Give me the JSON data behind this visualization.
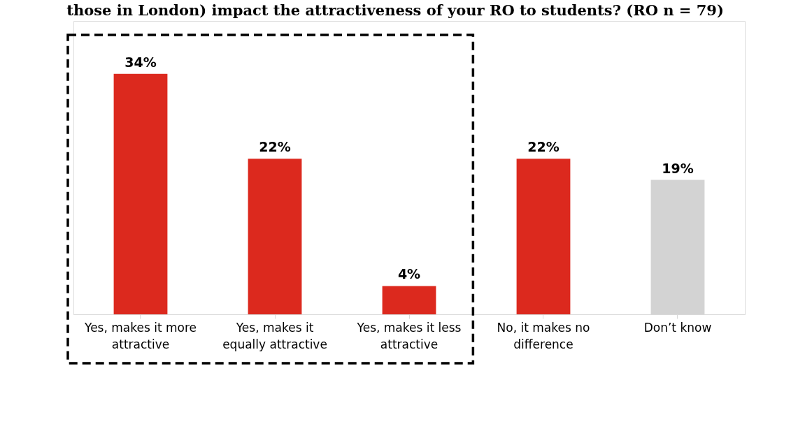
{
  "chart_data": {
    "type": "bar",
    "title": "those in London) impact the attractiveness of your RO to students? (RO n = 79)",
    "categories": [
      "Yes, makes it more attractive",
      "Yes, makes it equally attractive",
      "Yes, makes it less attractive",
      "No, it makes no difference",
      "Don’t know"
    ],
    "values": [
      34,
      22,
      4,
      22,
      19
    ],
    "colors": [
      "#dc291e",
      "#dc291e",
      "#dc291e",
      "#dc291e",
      "#d3d3d3"
    ],
    "value_labels": [
      "34%",
      "22%",
      "4%",
      "22%",
      "19%"
    ],
    "grid": false
  }
}
